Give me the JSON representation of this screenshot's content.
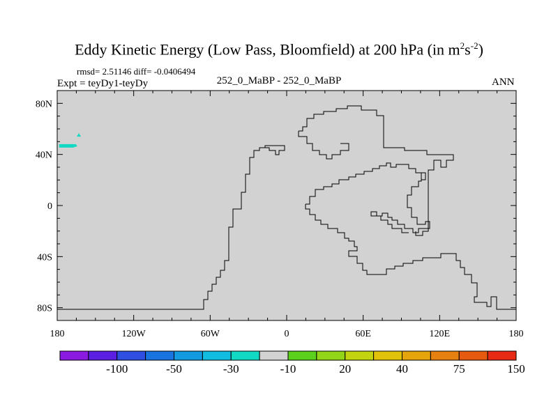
{
  "chart_data": {
    "type": "heatmap",
    "title": "Eddy Kinetic Energy (Low Pass, Bloomfield) at 200 hPa (in m",
    "title_units": {
      "sup1": "2",
      "base": "s",
      "sup2": "-2",
      "close": ")"
    },
    "stats": "rmsd= 2.51146 diff= -0.0406494",
    "left_subtitle": "Expt = teyDy1-teyDy",
    "center_subtitle": "252_0_MaBP - 252_0_MaBP",
    "right_subtitle": "ANN",
    "x_ticks": [
      {
        "value": -180,
        "label": "180"
      },
      {
        "value": -120,
        "label": "120W"
      },
      {
        "value": -60,
        "label": "60W"
      },
      {
        "value": 0,
        "label": "0"
      },
      {
        "value": 60,
        "label": "60E"
      },
      {
        "value": 120,
        "label": "120E"
      },
      {
        "value": 180,
        "label": "180"
      }
    ],
    "y_ticks": [
      {
        "value": 80,
        "label": "80N"
      },
      {
        "value": 40,
        "label": "40N"
      },
      {
        "value": 0,
        "label": "0"
      },
      {
        "value": -40,
        "label": "40S"
      },
      {
        "value": -80,
        "label": "80S"
      }
    ],
    "xlim": [
      -180,
      180
    ],
    "ylim": [
      -90,
      90
    ],
    "field_background_color": "#d2d2d2",
    "colorbar": {
      "colors": [
        "#8a1adf",
        "#5a1fe0",
        "#2e4fe2",
        "#1a74e0",
        "#129be0",
        "#12bce0",
        "#12d9c3",
        "#d2d2d2",
        "#5bd11d",
        "#92d418",
        "#c2d410",
        "#e0c20a",
        "#e6a40c",
        "#e68010",
        "#e65a10",
        "#e62a14"
      ],
      "labels": [
        "-100",
        "-50",
        "-30",
        "-10",
        "20",
        "40",
        "75",
        "150"
      ],
      "label_boundary_index": [
        2,
        4,
        6,
        8,
        10,
        12,
        14,
        16
      ]
    },
    "anomalies": [
      {
        "lon": -173,
        "lat": 47,
        "color": "#12d9c3"
      },
      {
        "lon": -163,
        "lat": 55,
        "color": "#12d9c3"
      }
    ]
  }
}
